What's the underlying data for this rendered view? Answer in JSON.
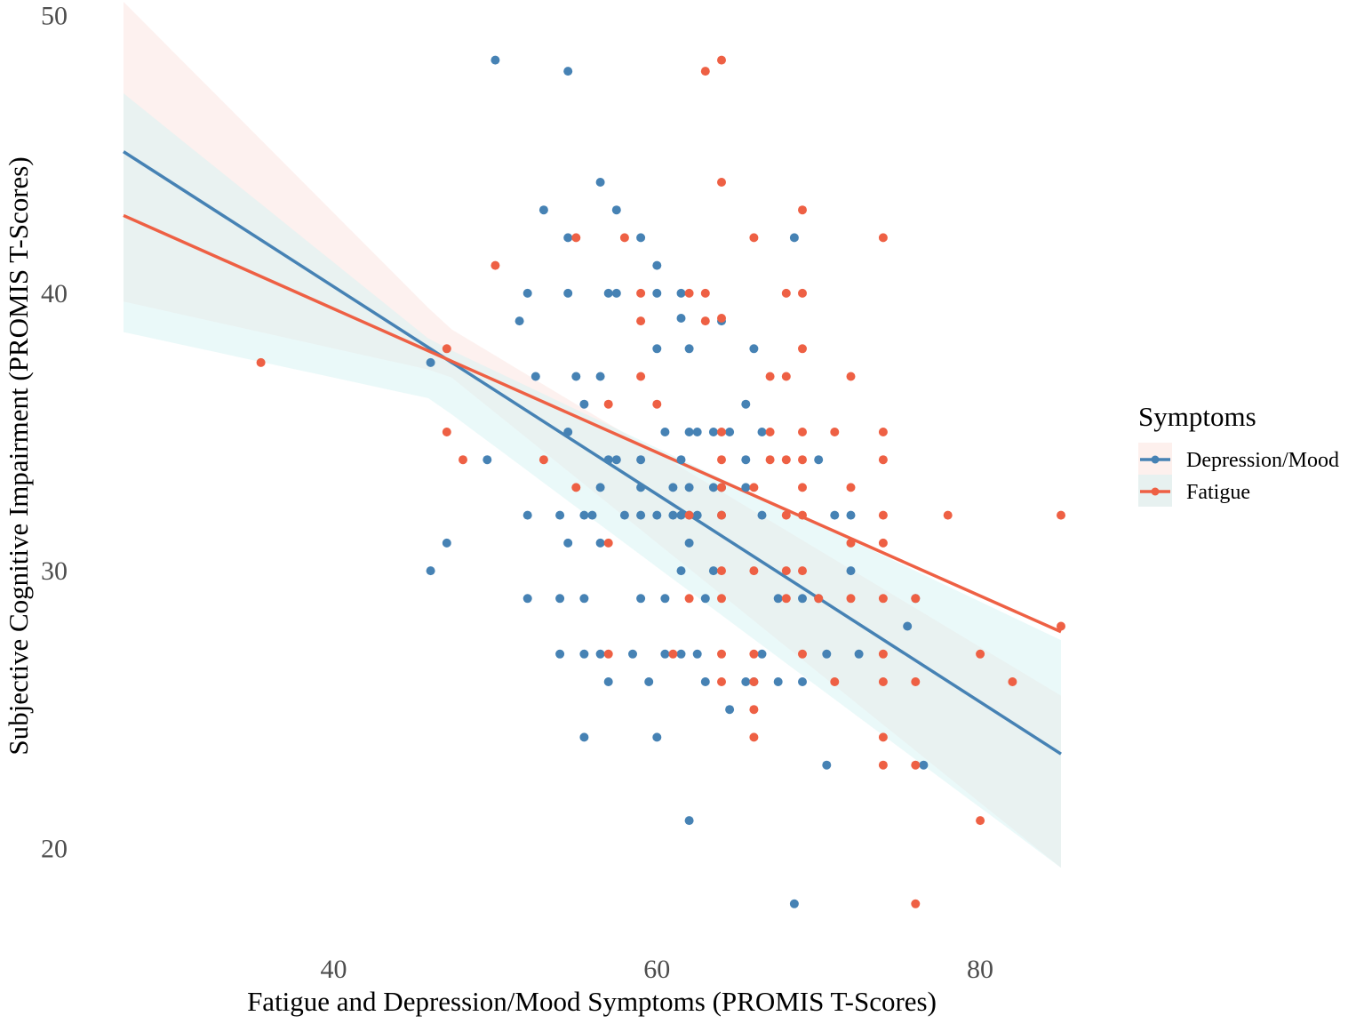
{
  "chart_data": {
    "type": "scatter",
    "title": "",
    "xlabel": "Fatigue and Depression/Mood Symptoms (PROMIS T-Scores)",
    "ylabel": "Subjective Cognitive Impairment (PROMIS T-Scores)",
    "xlim": [
      27,
      85
    ],
    "ylim": [
      17,
      50.5
    ],
    "xticks": [
      40,
      60,
      80
    ],
    "yticks": [
      20,
      30,
      40,
      50
    ],
    "grid": false,
    "legend": {
      "title": "Symptoms",
      "placement": "right",
      "entries": [
        "Depression/Mood",
        "Fatigue"
      ]
    },
    "series": [
      {
        "name": "Depression/Mood",
        "color": "#4682B4",
        "band_color": "#D6F3F3",
        "fit": {
          "x": [
            27,
            85
          ],
          "y": [
            45.1,
            23.4
          ]
        },
        "ci_upper": {
          "x": [
            27,
            46,
            85
          ],
          "y": [
            47.2,
            38.3,
            27.5
          ]
        },
        "ci_lower": {
          "x": [
            27,
            46,
            85
          ],
          "y": [
            38.6,
            36.2,
            19.3
          ]
        },
        "points": [
          [
            50,
            48.4
          ],
          [
            54.5,
            48
          ],
          [
            56.5,
            44
          ],
          [
            53,
            43
          ],
          [
            57.5,
            43
          ],
          [
            54.5,
            42
          ],
          [
            59,
            42
          ],
          [
            68.5,
            42
          ],
          [
            60,
            41
          ],
          [
            52,
            40
          ],
          [
            54.5,
            40
          ],
          [
            57,
            40
          ],
          [
            57.5,
            40
          ],
          [
            60,
            40
          ],
          [
            61.5,
            40
          ],
          [
            51.5,
            39
          ],
          [
            61.5,
            39.1
          ],
          [
            64,
            39
          ],
          [
            60,
            38
          ],
          [
            62,
            38
          ],
          [
            66,
            38
          ],
          [
            46,
            37.5
          ],
          [
            52.5,
            37
          ],
          [
            55,
            37
          ],
          [
            56.5,
            37
          ],
          [
            55.5,
            36
          ],
          [
            65.5,
            36
          ],
          [
            54.5,
            35
          ],
          [
            60.5,
            35
          ],
          [
            62,
            35
          ],
          [
            62.5,
            35
          ],
          [
            63.5,
            35
          ],
          [
            64.5,
            35
          ],
          [
            66.5,
            35
          ],
          [
            49.5,
            34
          ],
          [
            57,
            34
          ],
          [
            57.5,
            34
          ],
          [
            59,
            34
          ],
          [
            61.5,
            34
          ],
          [
            65.5,
            34
          ],
          [
            70,
            34
          ],
          [
            56.5,
            33
          ],
          [
            59,
            33
          ],
          [
            61,
            33
          ],
          [
            62,
            33
          ],
          [
            63.5,
            33
          ],
          [
            64,
            33
          ],
          [
            65.5,
            33
          ],
          [
            52,
            32
          ],
          [
            54,
            32
          ],
          [
            55.5,
            32
          ],
          [
            56,
            32
          ],
          [
            58,
            32
          ],
          [
            59,
            32
          ],
          [
            60,
            32
          ],
          [
            61,
            32
          ],
          [
            61.5,
            32
          ],
          [
            62,
            32
          ],
          [
            62.5,
            32
          ],
          [
            64,
            32
          ],
          [
            66.5,
            32
          ],
          [
            71,
            32
          ],
          [
            72,
            32
          ],
          [
            47,
            31
          ],
          [
            54.5,
            31
          ],
          [
            56.5,
            31
          ],
          [
            62,
            31
          ],
          [
            46,
            30
          ],
          [
            61.5,
            30
          ],
          [
            63.5,
            30
          ],
          [
            72,
            30
          ],
          [
            52,
            29
          ],
          [
            54,
            29
          ],
          [
            55.5,
            29
          ],
          [
            59,
            29
          ],
          [
            60.5,
            29
          ],
          [
            63,
            29
          ],
          [
            67.5,
            29
          ],
          [
            69,
            29
          ],
          [
            70,
            29
          ],
          [
            76,
            29
          ],
          [
            75.5,
            28
          ],
          [
            54,
            27
          ],
          [
            55.5,
            27
          ],
          [
            56.5,
            27
          ],
          [
            58.5,
            27
          ],
          [
            60.5,
            27
          ],
          [
            61.5,
            27
          ],
          [
            62.5,
            27
          ],
          [
            66.5,
            27
          ],
          [
            70.5,
            27
          ],
          [
            72.5,
            27
          ],
          [
            57,
            26
          ],
          [
            59.5,
            26
          ],
          [
            63,
            26
          ],
          [
            65.5,
            26
          ],
          [
            66,
            26
          ],
          [
            67.5,
            26
          ],
          [
            69,
            26
          ],
          [
            64.5,
            25
          ],
          [
            55.5,
            24
          ],
          [
            60,
            24
          ],
          [
            70.5,
            23
          ],
          [
            76.5,
            23
          ],
          [
            62,
            21
          ],
          [
            68.5,
            18
          ]
        ]
      },
      {
        "name": "Fatigue",
        "color": "#EE6044",
        "band_color": "#FCE4DF",
        "fit": {
          "x": [
            27,
            85
          ],
          "y": [
            42.8,
            27.8
          ]
        },
        "ci_upper": {
          "x": [
            27,
            47,
            85
          ],
          "y": [
            50.5,
            38.8,
            25.5
          ]
        },
        "ci_lower": {
          "x": [
            27,
            47,
            85
          ],
          "y": [
            39.7,
            37.1,
            19.3
          ]
        },
        "points": [
          [
            64,
            48.4
          ],
          [
            63,
            48
          ],
          [
            64,
            44
          ],
          [
            69,
            43
          ],
          [
            55,
            42
          ],
          [
            58,
            42
          ],
          [
            66,
            42
          ],
          [
            74,
            42
          ],
          [
            50,
            41
          ],
          [
            59,
            40
          ],
          [
            62,
            40
          ],
          [
            63,
            40
          ],
          [
            68,
            40
          ],
          [
            69,
            40
          ],
          [
            59,
            39
          ],
          [
            63,
            39
          ],
          [
            64,
            39.1
          ],
          [
            47,
            38
          ],
          [
            69,
            38
          ],
          [
            35.5,
            37.5
          ],
          [
            59,
            37
          ],
          [
            67,
            37
          ],
          [
            68,
            37
          ],
          [
            72,
            37
          ],
          [
            57,
            36
          ],
          [
            60,
            36
          ],
          [
            47,
            35
          ],
          [
            64,
            35
          ],
          [
            67,
            35
          ],
          [
            69,
            35
          ],
          [
            71,
            35
          ],
          [
            74,
            35
          ],
          [
            48,
            34
          ],
          [
            53,
            34
          ],
          [
            64,
            34
          ],
          [
            67,
            34
          ],
          [
            68,
            34
          ],
          [
            69,
            34
          ],
          [
            74,
            34
          ],
          [
            55,
            33
          ],
          [
            64,
            33
          ],
          [
            66,
            33
          ],
          [
            69,
            33
          ],
          [
            72,
            33
          ],
          [
            62,
            32
          ],
          [
            64,
            32
          ],
          [
            68,
            32
          ],
          [
            69,
            32
          ],
          [
            74,
            32
          ],
          [
            78,
            32
          ],
          [
            85,
            32
          ],
          [
            57,
            31
          ],
          [
            72,
            31
          ],
          [
            74,
            31
          ],
          [
            64,
            30
          ],
          [
            66,
            30
          ],
          [
            68,
            30
          ],
          [
            69,
            30
          ],
          [
            62,
            29
          ],
          [
            64,
            29
          ],
          [
            68,
            29
          ],
          [
            70,
            29
          ],
          [
            72,
            29
          ],
          [
            74,
            29
          ],
          [
            76,
            29
          ],
          [
            85,
            28
          ],
          [
            57,
            27
          ],
          [
            61,
            27
          ],
          [
            64,
            27
          ],
          [
            66,
            27
          ],
          [
            69,
            27
          ],
          [
            74,
            27
          ],
          [
            80,
            27
          ],
          [
            64,
            26
          ],
          [
            66,
            26
          ],
          [
            71,
            26
          ],
          [
            74,
            26
          ],
          [
            76,
            26
          ],
          [
            82,
            26
          ],
          [
            66,
            25
          ],
          [
            66,
            24
          ],
          [
            74,
            24
          ],
          [
            74,
            23
          ],
          [
            76,
            23
          ],
          [
            80,
            21
          ],
          [
            76,
            18
          ]
        ]
      }
    ]
  }
}
